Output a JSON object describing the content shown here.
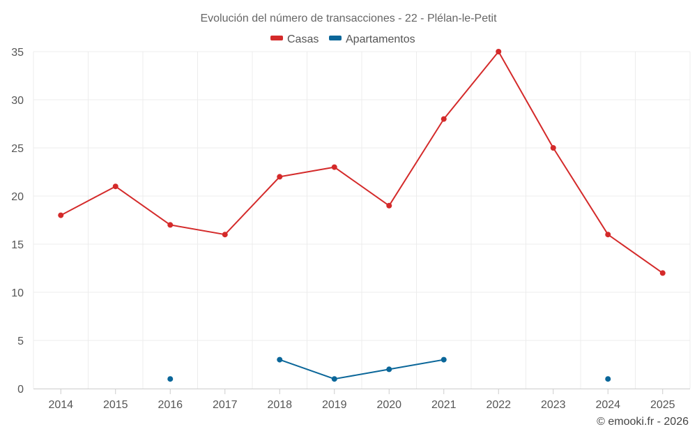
{
  "chart_data": {
    "type": "line",
    "title": "Evolución del número de transacciones - 22 - Plélan-le-Petit",
    "categories": [
      "2014",
      "2015",
      "2016",
      "2017",
      "2018",
      "2019",
      "2020",
      "2021",
      "2022",
      "2023",
      "2024",
      "2025"
    ],
    "series": [
      {
        "name": "Casas",
        "color": "#d42a2a",
        "values": [
          18,
          21,
          17,
          16,
          22,
          23,
          19,
          28,
          35,
          25,
          16,
          12
        ]
      },
      {
        "name": "Apartamentos",
        "color": "#0a6699",
        "values": [
          null,
          null,
          1,
          null,
          3,
          1,
          2,
          3,
          null,
          null,
          1,
          null
        ]
      }
    ],
    "y_ticks": [
      "0",
      "5",
      "10",
      "15",
      "20",
      "25",
      "30",
      "35"
    ],
    "ylim": [
      0,
      35
    ],
    "xlabel": "",
    "ylabel": "",
    "grid": true,
    "legend_position": "top-center",
    "credit": "© emooki.fr - 2026"
  }
}
